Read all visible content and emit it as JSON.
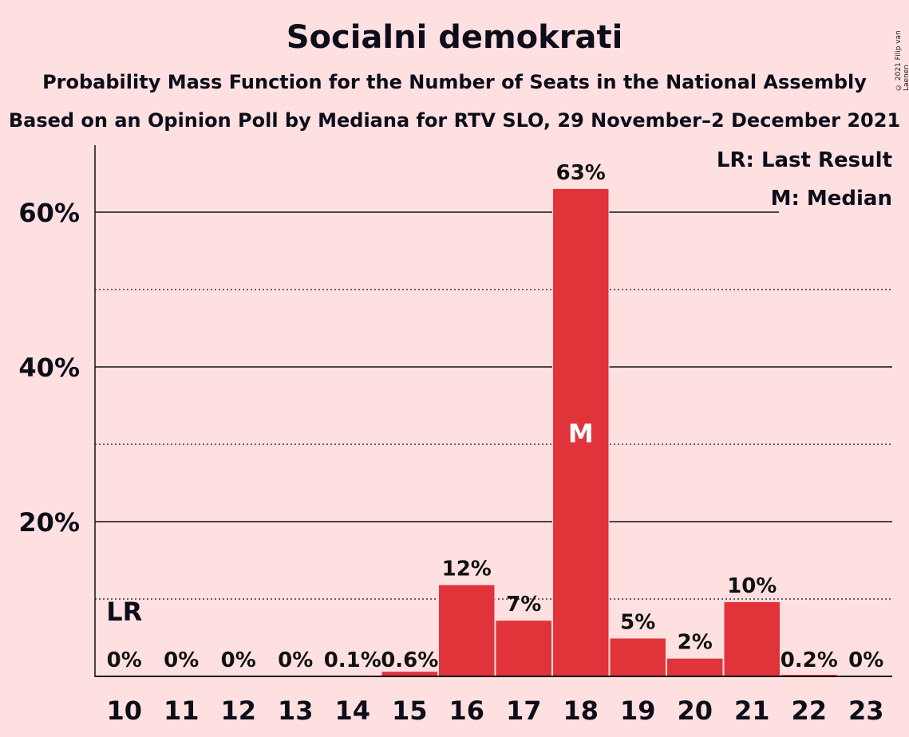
{
  "title": "Socialni demokrati",
  "subtitle": "Probability Mass Function for the Number of Seats in the National Assembly",
  "subtitle2": "Based on an Opinion Poll by Mediana for RTV SLO, 29 November–2 December 2021",
  "copyright": "© 2021 Filip van Laenen",
  "legend": {
    "last_result": "LR: Last Result",
    "median": "M: Median"
  },
  "colors": {
    "background": "#ffe0e1",
    "bar": "#e0333a",
    "text": "#0d0d1a"
  },
  "chart_data": {
    "type": "bar",
    "categories": [
      "10",
      "11",
      "12",
      "13",
      "14",
      "15",
      "16",
      "17",
      "18",
      "19",
      "20",
      "21",
      "22",
      "23"
    ],
    "values": [
      0,
      0,
      0,
      0,
      0.1,
      0.6,
      12,
      7,
      63,
      5,
      2,
      10,
      0.2,
      0
    ],
    "plot_values": [
      0,
      0,
      0,
      0,
      0.1,
      0.6,
      11.8,
      7.2,
      63,
      4.9,
      2.3,
      9.6,
      0.2,
      0
    ],
    "data_labels": [
      "0%",
      "0%",
      "0%",
      "0%",
      "0.1%",
      "0.6%",
      "12%",
      "7%",
      "63%",
      "5%",
      "2%",
      "10%",
      "0.2%",
      "0%"
    ],
    "y_ticks": [
      20,
      40,
      60
    ],
    "y_tick_labels": [
      "20%",
      "40%",
      "60%"
    ],
    "y_minor_ticks": [
      10,
      30,
      50
    ],
    "ylim": [
      0,
      68
    ],
    "last_result": {
      "category": "10",
      "label": "LR"
    },
    "median": {
      "category": "18",
      "label": "M"
    },
    "grid": true,
    "legend_position": "top-right"
  }
}
